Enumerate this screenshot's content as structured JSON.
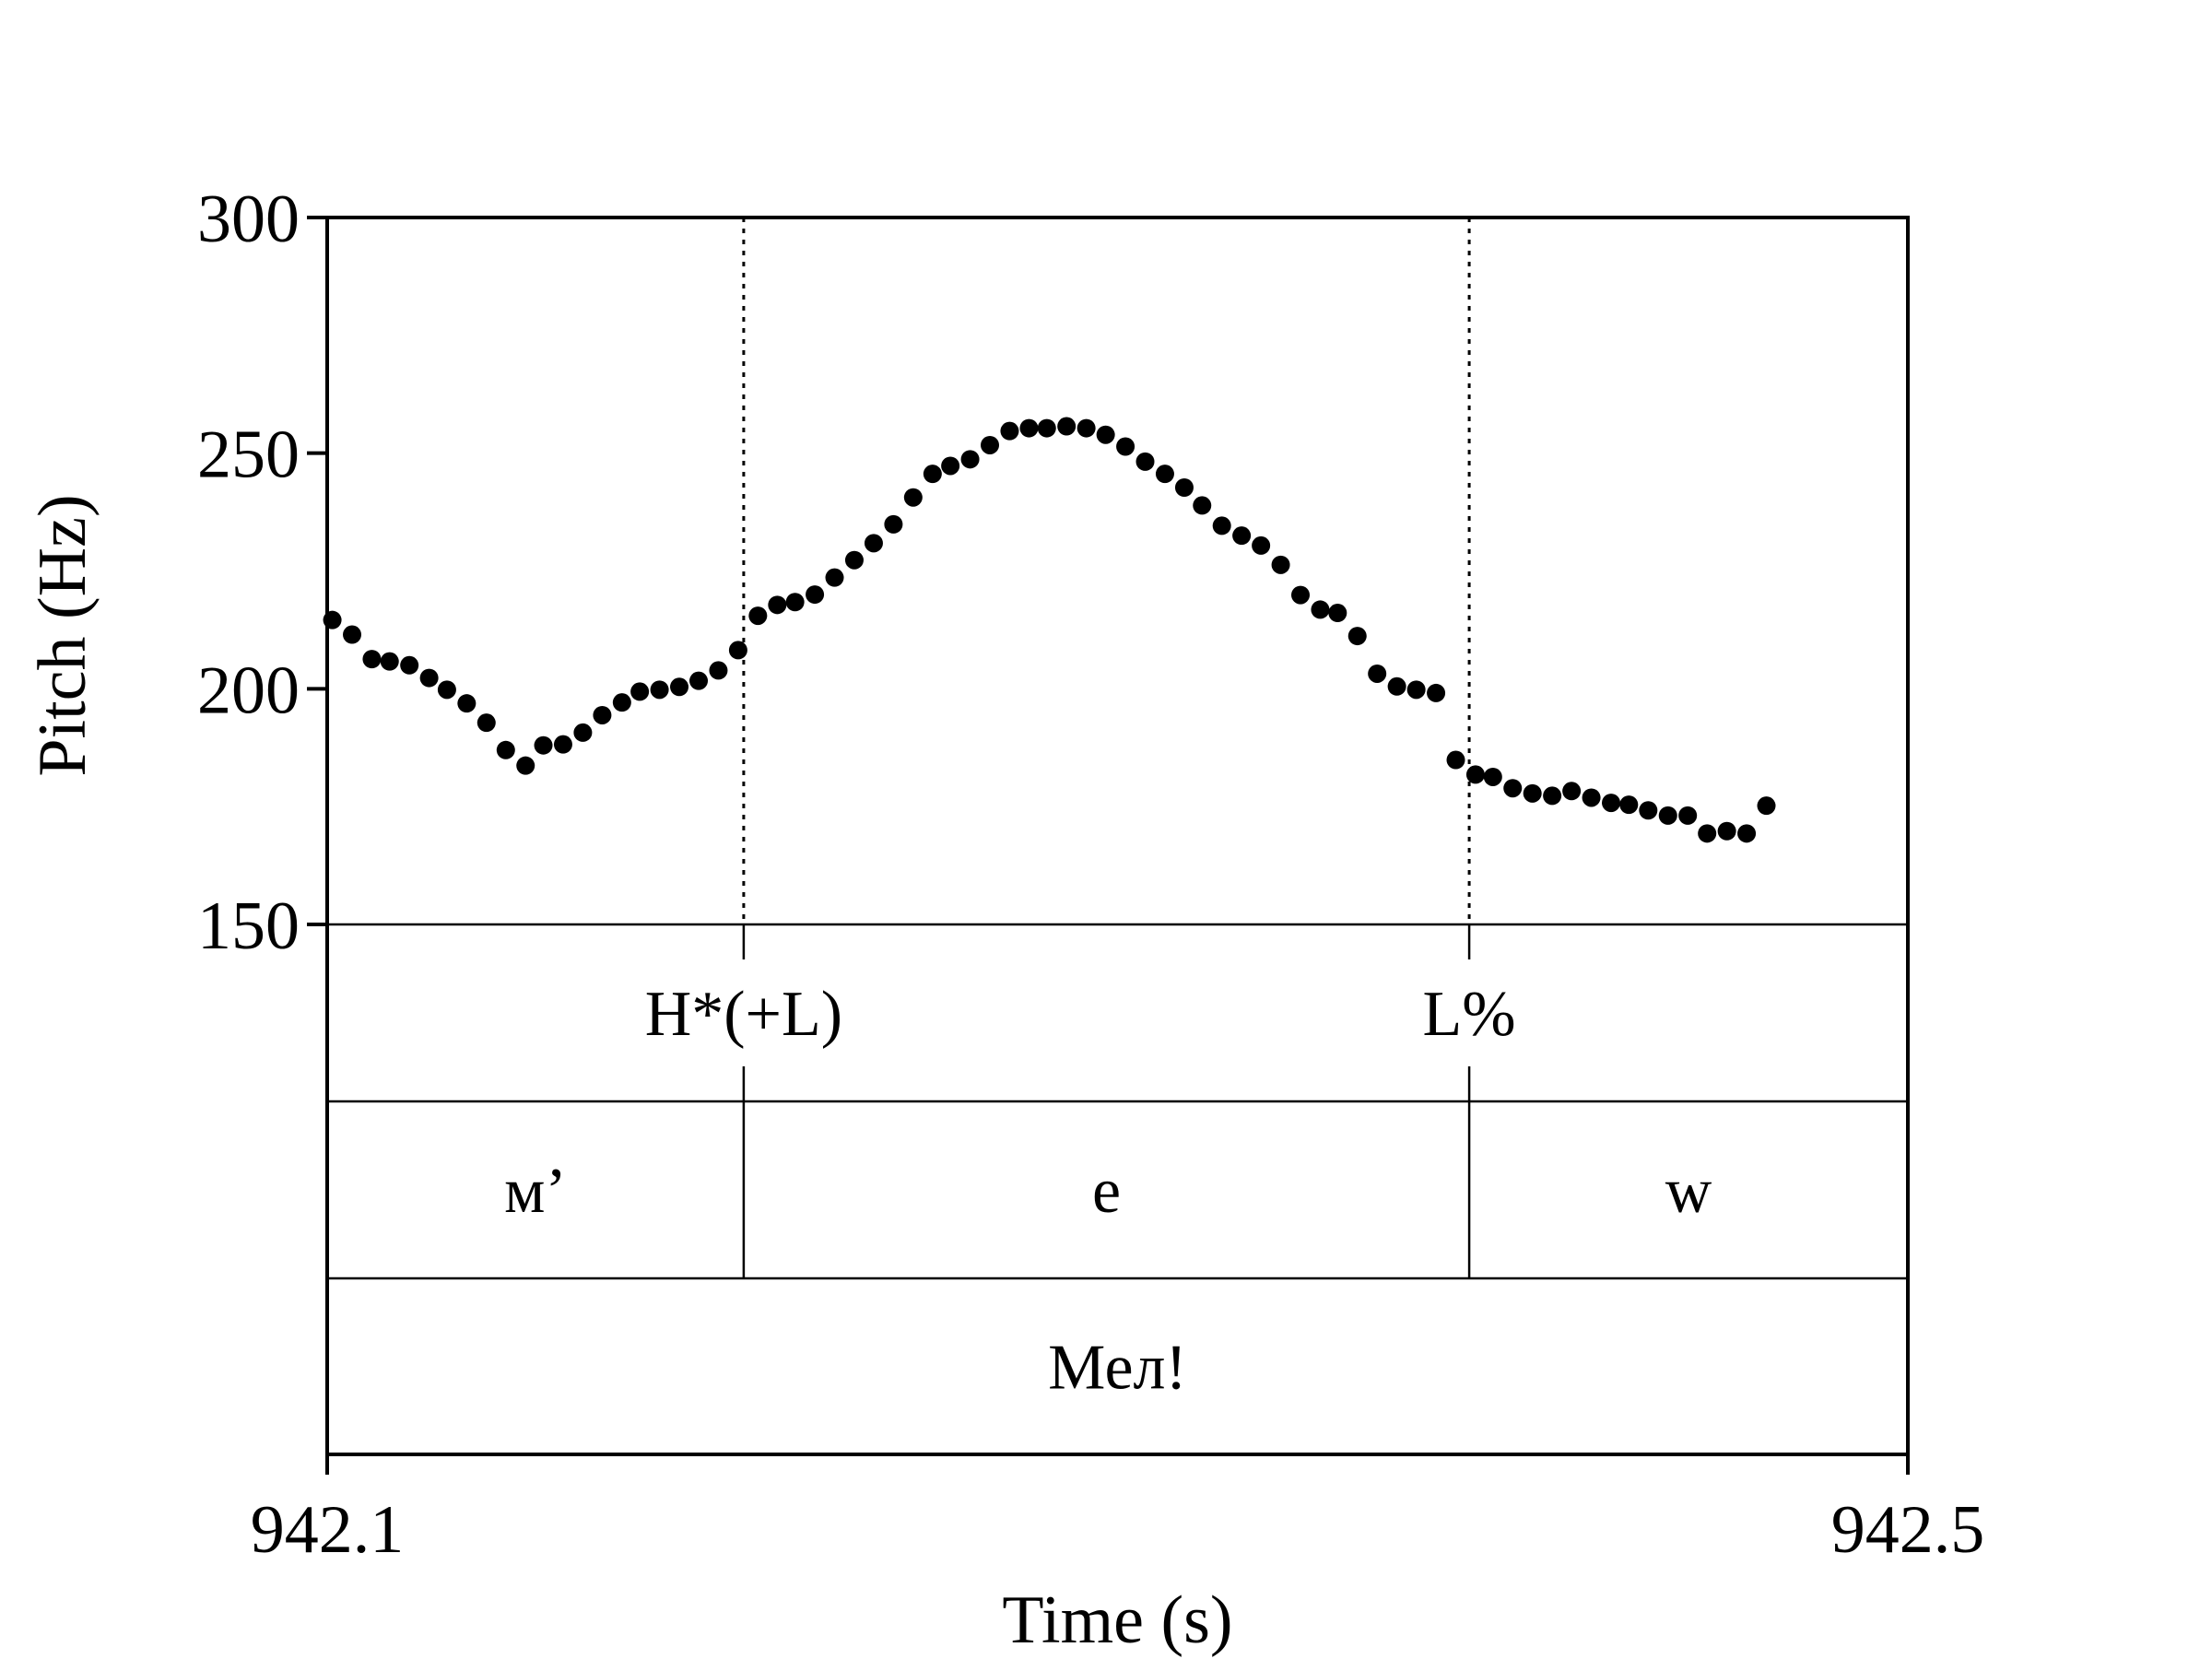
{
  "chart_data": {
    "type": "scatter",
    "title": "",
    "xlabel": "Time (s)",
    "ylabel": "Pitch (Hz)",
    "xlim": [
      942.1,
      942.5
    ],
    "ylim": [
      150,
      300
    ],
    "x_ticks": [
      "942.1",
      "942.5"
    ],
    "y_ticks": [
      "150",
      "200",
      "250",
      "300"
    ],
    "colors": {
      "points": "#000000",
      "lines": "#000000"
    },
    "boundaries": [
      942.2054,
      942.389
    ],
    "series": [
      {
        "name": "",
        "points": [
          [
            942.1013,
            214.6
          ],
          [
            942.1063,
            211.5
          ],
          [
            942.1113,
            206.3
          ],
          [
            942.1158,
            205.8
          ],
          [
            942.1208,
            205.0
          ],
          [
            942.1258,
            202.3
          ],
          [
            942.1303,
            199.8
          ],
          [
            942.1353,
            196.9
          ],
          [
            942.1403,
            192.8
          ],
          [
            942.1452,
            187.0
          ],
          [
            942.1502,
            183.7
          ],
          [
            942.1547,
            188.0
          ],
          [
            942.1597,
            188.2
          ],
          [
            942.1647,
            190.7
          ],
          [
            942.1696,
            194.4
          ],
          [
            942.1746,
            197.1
          ],
          [
            942.1791,
            199.4
          ],
          [
            942.1841,
            199.8
          ],
          [
            942.1891,
            200.4
          ],
          [
            942.194,
            201.7
          ],
          [
            942.199,
            203.9
          ],
          [
            942.204,
            208.2
          ],
          [
            942.209,
            215.5
          ],
          [
            942.2139,
            217.8
          ],
          [
            942.2184,
            218.4
          ],
          [
            942.2234,
            220.0
          ],
          [
            942.2284,
            223.6
          ],
          [
            942.2334,
            227.3
          ],
          [
            942.2383,
            230.9
          ],
          [
            942.2433,
            234.9
          ],
          [
            942.2483,
            240.6
          ],
          [
            942.2532,
            245.6
          ],
          [
            942.2577,
            247.3
          ],
          [
            942.2627,
            248.7
          ],
          [
            942.2677,
            251.7
          ],
          [
            942.2727,
            254.7
          ],
          [
            942.2776,
            255.3
          ],
          [
            942.2821,
            255.3
          ],
          [
            942.2871,
            255.7
          ],
          [
            942.2921,
            255.3
          ],
          [
            942.297,
            253.9
          ],
          [
            942.302,
            251.4
          ],
          [
            942.307,
            248.2
          ],
          [
            942.312,
            245.6
          ],
          [
            942.3169,
            242.7
          ],
          [
            942.3214,
            238.9
          ],
          [
            942.3264,
            234.6
          ],
          [
            942.3314,
            232.5
          ],
          [
            942.3363,
            230.4
          ],
          [
            942.3413,
            226.3
          ],
          [
            942.3463,
            219.9
          ],
          [
            942.3513,
            216.8
          ],
          [
            942.3557,
            216.1
          ],
          [
            942.3607,
            211.2
          ],
          [
            942.3657,
            203.2
          ],
          [
            942.3707,
            200.5
          ],
          [
            942.3756,
            199.8
          ],
          [
            942.3806,
            199.1
          ],
          [
            942.3856,
            184.9
          ],
          [
            942.3906,
            181.8
          ],
          [
            942.395,
            181.3
          ],
          [
            942.4,
            178.9
          ],
          [
            942.405,
            177.8
          ],
          [
            942.41,
            177.3
          ],
          [
            942.4149,
            178.3
          ],
          [
            942.4199,
            176.9
          ],
          [
            942.4249,
            175.8
          ],
          [
            942.4294,
            175.4
          ],
          [
            942.4343,
            174.2
          ],
          [
            942.4393,
            173.1
          ],
          [
            942.4443,
            173.1
          ],
          [
            942.4492,
            169.3
          ],
          [
            942.4542,
            169.8
          ],
          [
            942.4592,
            169.3
          ],
          [
            942.4642,
            175.2
          ]
        ]
      }
    ],
    "tiers": [
      {
        "intervals": [
          {
            "label": "H*(+L)",
            "at": 942.2054
          },
          {
            "label": "L%",
            "at": 942.389
          }
        ]
      },
      {
        "intervals": [
          {
            "label": "м’",
            "start": 942.1,
            "end": 942.2054
          },
          {
            "label": "e",
            "start": 942.2054,
            "end": 942.389
          },
          {
            "label": "w",
            "start": 942.389,
            "end": 942.5
          }
        ]
      },
      {
        "intervals": [
          {
            "label": "Мел!",
            "start": 942.1,
            "end": 942.5
          }
        ]
      }
    ]
  }
}
